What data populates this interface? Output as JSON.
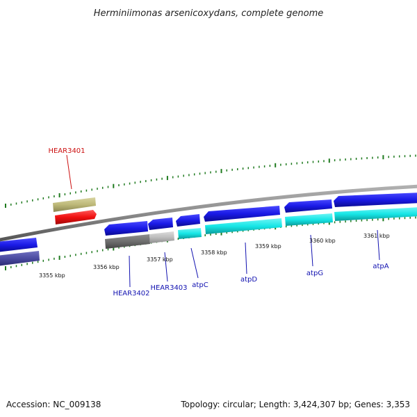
{
  "title": "Herminiimonas arsenicoxydans, complete genome",
  "footer": {
    "accession": "Accession: NC_009138",
    "topology": "Topology: circular; Length: 3,424,307 bp; Genes: 3,353"
  },
  "colors": {
    "backbone": "#8c8c8c",
    "tick": "#1e7a1e",
    "gene_blue": "#1a1ae6",
    "gene_cyan": "#16e6e6",
    "gene_red": "#f01010",
    "gene_khaki": "#bdb878",
    "gene_dark_gray": "#6e6e6e",
    "gene_light_gray": "#bdbdbd",
    "gene_slate": "#4a4aa0",
    "label_blue": "#1010b0",
    "label_red": "#cc1010"
  },
  "scale_labels": [
    "3355 kbp",
    "3356 kbp",
    "3357 kbp",
    "3358 kbp",
    "3359 kbp",
    "3360 kbp",
    "3361 kbp"
  ],
  "gene_labels": [
    {
      "id": "hear3401",
      "text": "HEAR3401",
      "color": "label_red"
    },
    {
      "id": "hear3402",
      "text": "HEAR3402",
      "color": "label_blue"
    },
    {
      "id": "hear3403",
      "text": "HEAR3403",
      "color": "label_blue"
    },
    {
      "id": "atpc",
      "text": "atpC",
      "color": "label_blue"
    },
    {
      "id": "atpd",
      "text": "atpD",
      "color": "label_blue"
    },
    {
      "id": "atpg",
      "text": "atpG",
      "color": "label_blue"
    },
    {
      "id": "atpa",
      "text": "atpA",
      "color": "label_blue"
    }
  ]
}
